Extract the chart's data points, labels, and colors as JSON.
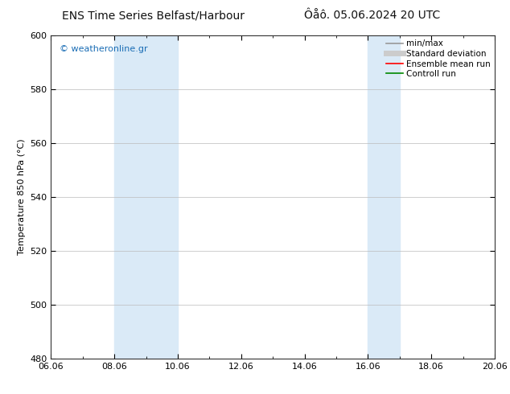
{
  "title_left": "ENS Time Series Belfast/Harbour",
  "title_right": "Ôåô. 05.06.2024 20 UTC",
  "ylabel": "Temperature 850 hPa (°C)",
  "watermark": "© weatheronline.gr",
  "ylim": [
    480,
    600
  ],
  "yticks": [
    480,
    500,
    520,
    540,
    560,
    580,
    600
  ],
  "xtick_labels": [
    "06.06",
    "08.06",
    "10.06",
    "12.06",
    "14.06",
    "16.06",
    "18.06",
    "20.06"
  ],
  "xtick_positions": [
    0,
    2,
    4,
    6,
    8,
    10,
    12,
    14
  ],
  "x_total": 14,
  "shaded_bands": [
    {
      "x_start": 2,
      "x_end": 4
    },
    {
      "x_start": 10,
      "x_end": 11
    }
  ],
  "shade_color": "#daeaf7",
  "background_color": "#ffffff",
  "plot_bg_color": "#ffffff",
  "grid_color": "#bbbbbb",
  "legend_items": [
    {
      "label": "min/max",
      "color": "#999999",
      "lw": 1.2
    },
    {
      "label": "Standard deviation",
      "color": "#cccccc",
      "lw": 5
    },
    {
      "label": "Ensemble mean run",
      "color": "#ff0000",
      "lw": 1.2
    },
    {
      "label": "Controll run",
      "color": "#008800",
      "lw": 1.2
    }
  ],
  "watermark_color": "#1a6db5",
  "title_fontsize": 10,
  "tick_fontsize": 8,
  "ylabel_fontsize": 8,
  "legend_fontsize": 7.5
}
